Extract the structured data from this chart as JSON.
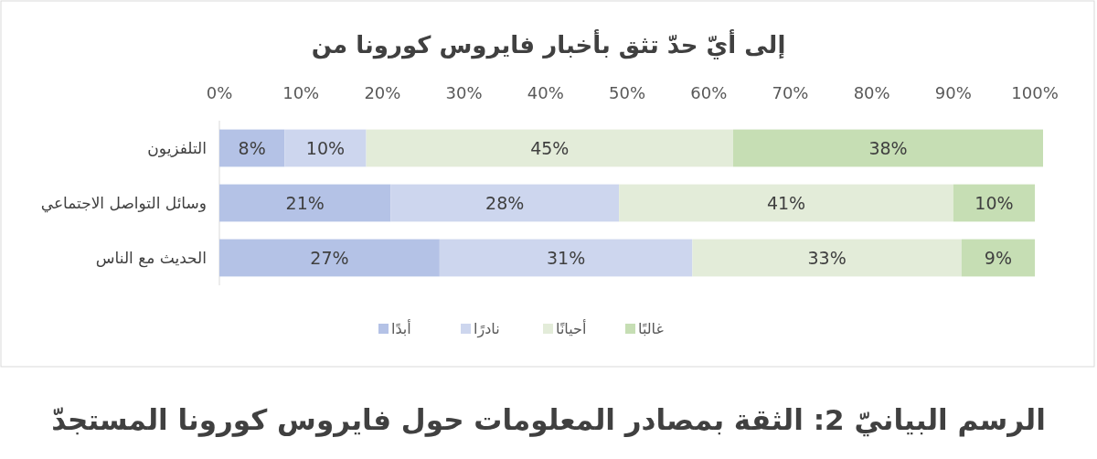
{
  "chart_data": {
    "type": "bar",
    "orientation": "horizontal",
    "stacked": true,
    "title": "إلى أيّ حدّ تثق بأخبار فايروس كورونا من",
    "categories": [
      "التلفزيون",
      "وسائل التواصل الاجتماعي",
      "الحديث مع الناس"
    ],
    "series": [
      {
        "name": "أبدًا",
        "color": "#b4c2e6",
        "values": [
          8,
          21,
          27
        ],
        "value_labels": [
          "8%",
          "21%",
          "27%"
        ]
      },
      {
        "name": "نادرًا",
        "color": "#cdd6ee",
        "values": [
          10,
          28,
          31
        ],
        "value_labels": [
          "10%",
          "28%",
          "31%"
        ]
      },
      {
        "name": "أحيانًا",
        "color": "#e3ecd9",
        "values": [
          45,
          41,
          33
        ],
        "value_labels": [
          "45%",
          "41%",
          "33%"
        ]
      },
      {
        "name": "غالبًا",
        "color": "#c6deb4",
        "values": [
          38,
          10,
          9
        ],
        "value_labels": [
          "38%",
          "10%",
          "9%"
        ]
      }
    ],
    "xlim": [
      0,
      101
    ],
    "xticks": [
      {
        "value": 0,
        "label": "0%"
      },
      {
        "value": 10,
        "label": "10%"
      },
      {
        "value": 20,
        "label": "20%"
      },
      {
        "value": 30,
        "label": "30%"
      },
      {
        "value": 40,
        "label": "40%"
      },
      {
        "value": 50,
        "label": "50%"
      },
      {
        "value": 60,
        "label": "60%"
      },
      {
        "value": 70,
        "label": "70%"
      },
      {
        "value": 80,
        "label": "80%"
      },
      {
        "value": 90,
        "label": "90%"
      },
      {
        "value": 100,
        "label": "100%"
      }
    ],
    "legend": "bottom",
    "annotations": [
      "الرسم البيانيّ 2: الثقة بمصادر المعلومات حول فايروس كورونا المستجدّ"
    ]
  }
}
